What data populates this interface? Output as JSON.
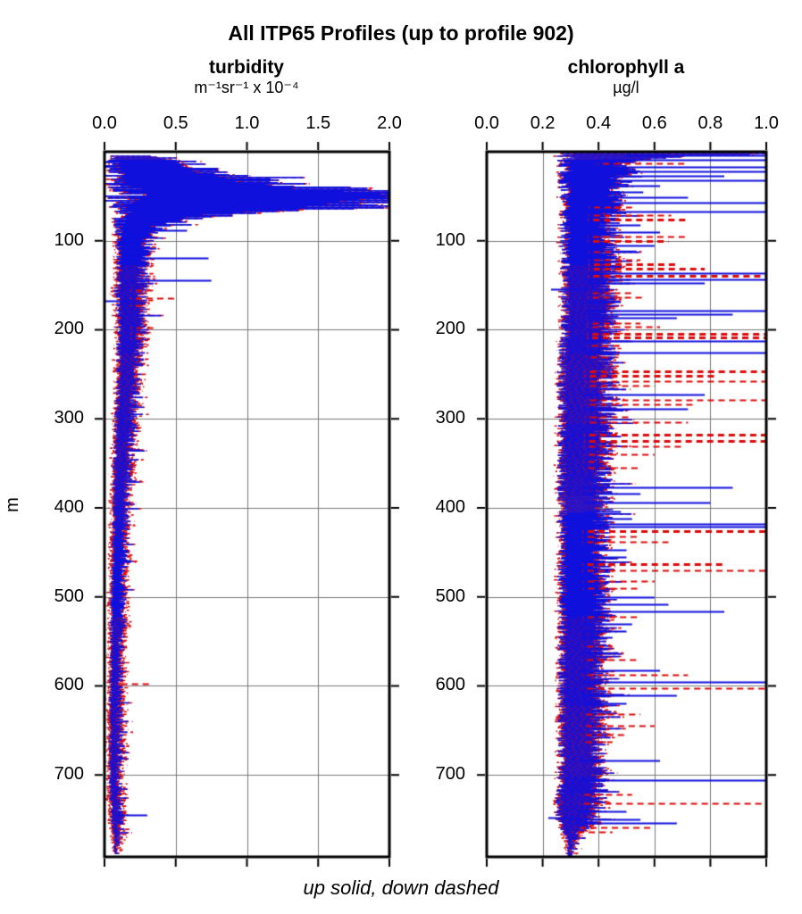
{
  "title": "All ITP65 Profiles (up to profile 902)",
  "caption": "up solid, down dashed",
  "y_axis": {
    "label": "m",
    "ticks": [
      100,
      200,
      300,
      400,
      500,
      600,
      700
    ]
  },
  "colors": {
    "profile_up": "#1010DD",
    "profile_down": "#DD0B0B",
    "grid": "#777777",
    "frame": "#000000",
    "background": "#FFFFFF"
  },
  "legend": {
    "up_style": "solid",
    "down_style": "dashed"
  },
  "chart_data": [
    {
      "type": "line",
      "title": "turbidity",
      "unit": "m⁻¹sr⁻¹ x 10⁻⁴",
      "ylabel": "m",
      "x_ticks": [
        0.0,
        0.5,
        1.0,
        1.5,
        2.0
      ],
      "x_tick_labels": [
        "0.0",
        "0.5",
        "1.0",
        "1.5",
        "2.0"
      ],
      "xlim": [
        0,
        2
      ],
      "ylim": [
        0,
        792
      ],
      "grid": "on",
      "series": [
        {
          "name": "up profiles",
          "color": "#1010DD",
          "style": "solid"
        },
        {
          "name": "down profiles",
          "color": "#DD0B0B",
          "style": "dashed"
        }
      ],
      "envelope": [
        [
          5,
          0.06,
          0.4
        ],
        [
          12,
          0.05,
          0.6
        ],
        [
          20,
          0.06,
          0.72
        ],
        [
          30,
          0.07,
          0.95
        ],
        [
          38,
          0.09,
          1.3
        ],
        [
          45,
          0.11,
          1.95
        ],
        [
          52,
          0.13,
          2.0
        ],
        [
          58,
          0.14,
          2.0
        ],
        [
          63,
          0.14,
          1.7
        ],
        [
          68,
          0.12,
          1.05
        ],
        [
          75,
          0.11,
          0.6
        ],
        [
          85,
          0.1,
          0.38
        ],
        [
          100,
          0.1,
          0.3
        ],
        [
          130,
          0.1,
          0.28
        ],
        [
          160,
          0.09,
          0.27
        ],
        [
          200,
          0.1,
          0.27
        ],
        [
          240,
          0.1,
          0.24
        ],
        [
          280,
          0.09,
          0.21
        ],
        [
          320,
          0.08,
          0.19
        ],
        [
          360,
          0.07,
          0.17
        ],
        [
          400,
          0.07,
          0.16
        ],
        [
          450,
          0.06,
          0.14
        ],
        [
          500,
          0.05,
          0.13
        ],
        [
          560,
          0.05,
          0.12
        ],
        [
          620,
          0.04,
          0.11
        ],
        [
          680,
          0.04,
          0.11
        ],
        [
          720,
          0.04,
          0.1
        ],
        [
          745,
          0.05,
          0.12
        ],
        [
          760,
          0.06,
          0.11
        ],
        [
          775,
          0.07,
          0.1
        ],
        [
          788,
          0.07,
          0.09
        ]
      ],
      "spikes": [
        [
          88,
          0.58,
          "up"
        ],
        [
          119,
          0.73,
          "up"
        ],
        [
          144,
          0.75,
          "up"
        ],
        [
          155,
          0.34,
          "down"
        ],
        [
          164,
          0.52,
          "down"
        ],
        [
          167,
          0.005,
          "up"
        ],
        [
          172,
          0.3,
          "down"
        ],
        [
          197,
          0.37,
          "down"
        ],
        [
          205,
          0.3,
          "down"
        ],
        [
          210,
          0.28,
          "down"
        ],
        [
          598,
          0.33,
          "down"
        ],
        [
          745,
          0.3,
          "up"
        ]
      ]
    },
    {
      "type": "line",
      "title": "chlorophyll a",
      "unit": "µg/l",
      "ylabel": "m",
      "x_ticks": [
        0.0,
        0.2,
        0.4,
        0.6,
        0.8,
        1.0
      ],
      "x_tick_labels": [
        "0.0",
        "0.2",
        "0.4",
        "0.6",
        "0.8",
        "1.0"
      ],
      "xlim": [
        0,
        1
      ],
      "ylim": [
        0,
        792
      ],
      "grid": "on",
      "series": [
        {
          "name": "up profiles",
          "color": "#1010DD",
          "style": "solid"
        },
        {
          "name": "down profiles",
          "color": "#DD0B0B",
          "style": "dashed"
        }
      ],
      "envelope": [
        [
          2,
          0.3,
          1.0
        ],
        [
          4,
          0.29,
          0.7
        ],
        [
          8,
          0.28,
          0.55
        ],
        [
          15,
          0.28,
          0.5
        ],
        [
          25,
          0.28,
          0.5
        ],
        [
          40,
          0.28,
          0.47
        ],
        [
          60,
          0.28,
          0.45
        ],
        [
          90,
          0.28,
          0.44
        ],
        [
          120,
          0.28,
          0.45
        ],
        [
          160,
          0.28,
          0.44
        ],
        [
          200,
          0.28,
          0.44
        ],
        [
          250,
          0.27,
          0.43
        ],
        [
          300,
          0.27,
          0.43
        ],
        [
          350,
          0.27,
          0.42
        ],
        [
          400,
          0.27,
          0.42
        ],
        [
          450,
          0.27,
          0.41
        ],
        [
          500,
          0.27,
          0.42
        ],
        [
          550,
          0.27,
          0.41
        ],
        [
          600,
          0.27,
          0.41
        ],
        [
          650,
          0.27,
          0.4
        ],
        [
          700,
          0.27,
          0.4
        ],
        [
          725,
          0.26,
          0.4
        ],
        [
          745,
          0.26,
          0.39
        ],
        [
          758,
          0.27,
          0.36
        ],
        [
          766,
          0.28,
          0.33
        ],
        [
          775,
          0.29,
          0.31
        ],
        [
          790,
          0.29,
          0.3
        ]
      ],
      "spikes": [
        [
          4,
          1.0,
          "up"
        ],
        [
          9,
          1.0,
          "up"
        ],
        [
          13,
          0.72,
          "down"
        ],
        [
          17,
          1.0,
          "up"
        ],
        [
          22,
          1.0,
          "up"
        ],
        [
          27,
          0.85,
          "up"
        ],
        [
          32,
          1.0,
          "up"
        ],
        [
          38,
          0.62,
          "up"
        ],
        [
          45,
          0.56,
          "up"
        ],
        [
          51,
          0.72,
          "up"
        ],
        [
          57,
          1.0,
          "up"
        ],
        [
          62,
          0.52,
          "down"
        ],
        [
          67,
          1.0,
          "up"
        ],
        [
          71,
          0.66,
          "down"
        ],
        [
          76,
          0.72,
          "down",
          3
        ],
        [
          82,
          0.55,
          "up"
        ],
        [
          90,
          0.62,
          "up"
        ],
        [
          95,
          0.72,
          "down"
        ],
        [
          100,
          0.65,
          "down",
          3
        ],
        [
          105,
          0.6,
          "up"
        ],
        [
          112,
          0.46,
          "down"
        ],
        [
          121,
          0.55,
          "down"
        ],
        [
          126,
          0.68,
          "down",
          3
        ],
        [
          131,
          0.78,
          "down",
          3
        ],
        [
          136,
          1.0,
          "up"
        ],
        [
          139,
          1.0,
          "down",
          3
        ],
        [
          143,
          1.0,
          "up"
        ],
        [
          147,
          0.78,
          "up"
        ],
        [
          154,
          0.23,
          "up"
        ],
        [
          158,
          0.52,
          "down"
        ],
        [
          163,
          0.56,
          "down"
        ],
        [
          168,
          0.48,
          "up"
        ],
        [
          178,
          1.0,
          "up"
        ],
        [
          182,
          0.88,
          "up"
        ],
        [
          186,
          0.68,
          "up"
        ],
        [
          192,
          0.55,
          "down"
        ],
        [
          196,
          0.62,
          "down"
        ],
        [
          205,
          1.0,
          "down",
          3
        ],
        [
          209,
          1.0,
          "down",
          3
        ],
        [
          213,
          1.0,
          "up"
        ],
        [
          218,
          0.48,
          "down"
        ],
        [
          226,
          1.0,
          "up"
        ],
        [
          231,
          0.45,
          "down"
        ],
        [
          247,
          1.0,
          "down",
          3
        ],
        [
          252,
          0.82,
          "down",
          3
        ],
        [
          258,
          1.0,
          "down"
        ],
        [
          263,
          0.6,
          "down"
        ],
        [
          273,
          0.78,
          "up"
        ],
        [
          279,
          1.0,
          "down"
        ],
        [
          284,
          0.75,
          "down"
        ],
        [
          289,
          0.72,
          "up"
        ],
        [
          298,
          0.52,
          "down"
        ],
        [
          304,
          0.72,
          "down"
        ],
        [
          318,
          1.0,
          "down",
          3
        ],
        [
          325,
          1.0,
          "down",
          3
        ],
        [
          331,
          0.7,
          "down"
        ],
        [
          340,
          0.6,
          "down"
        ],
        [
          348,
          0.42,
          "down"
        ],
        [
          355,
          0.55,
          "down"
        ],
        [
          368,
          0.45,
          "up"
        ],
        [
          377,
          0.88,
          "up"
        ],
        [
          384,
          0.55,
          "up"
        ],
        [
          394,
          0.8,
          "up"
        ],
        [
          404,
          0.48,
          "up"
        ],
        [
          412,
          0.52,
          "up"
        ],
        [
          418,
          1.0,
          "up"
        ],
        [
          421,
          1.0,
          "up"
        ],
        [
          426,
          1.0,
          "down",
          3
        ],
        [
          432,
          0.55,
          "down"
        ],
        [
          438,
          0.65,
          "down"
        ],
        [
          447,
          0.5,
          "up"
        ],
        [
          455,
          0.5,
          "up"
        ],
        [
          463,
          0.85,
          "down",
          3
        ],
        [
          470,
          1.0,
          "down"
        ],
        [
          482,
          0.6,
          "down"
        ],
        [
          490,
          0.55,
          "down"
        ],
        [
          500,
          0.6,
          "up"
        ],
        [
          508,
          0.65,
          "up"
        ],
        [
          516,
          0.85,
          "up"
        ],
        [
          522,
          0.55,
          "down"
        ],
        [
          530,
          0.52,
          "up"
        ],
        [
          538,
          0.5,
          "up"
        ],
        [
          545,
          0.45,
          "up"
        ],
        [
          555,
          0.45,
          "down"
        ],
        [
          562,
          0.42,
          "up"
        ],
        [
          570,
          0.55,
          "down"
        ],
        [
          582,
          0.62,
          "up"
        ],
        [
          587,
          0.72,
          "down"
        ],
        [
          596,
          1.0,
          "up"
        ],
        [
          603,
          1.0,
          "down"
        ],
        [
          611,
          0.68,
          "up"
        ],
        [
          620,
          0.5,
          "up"
        ],
        [
          632,
          0.55,
          "down"
        ],
        [
          645,
          0.6,
          "down"
        ],
        [
          655,
          0.5,
          "down"
        ],
        [
          663,
          0.45,
          "down"
        ],
        [
          684,
          0.62,
          "up"
        ],
        [
          706,
          1.0,
          "up"
        ],
        [
          722,
          0.52,
          "down"
        ],
        [
          732,
          1.0,
          "down"
        ],
        [
          741,
          0.5,
          "up"
        ],
        [
          748,
          0.22,
          "up"
        ],
        [
          750,
          0.55,
          "up"
        ],
        [
          754,
          0.68,
          "up"
        ],
        [
          759,
          0.6,
          "down"
        ],
        [
          764,
          0.45,
          "down"
        ]
      ]
    }
  ]
}
